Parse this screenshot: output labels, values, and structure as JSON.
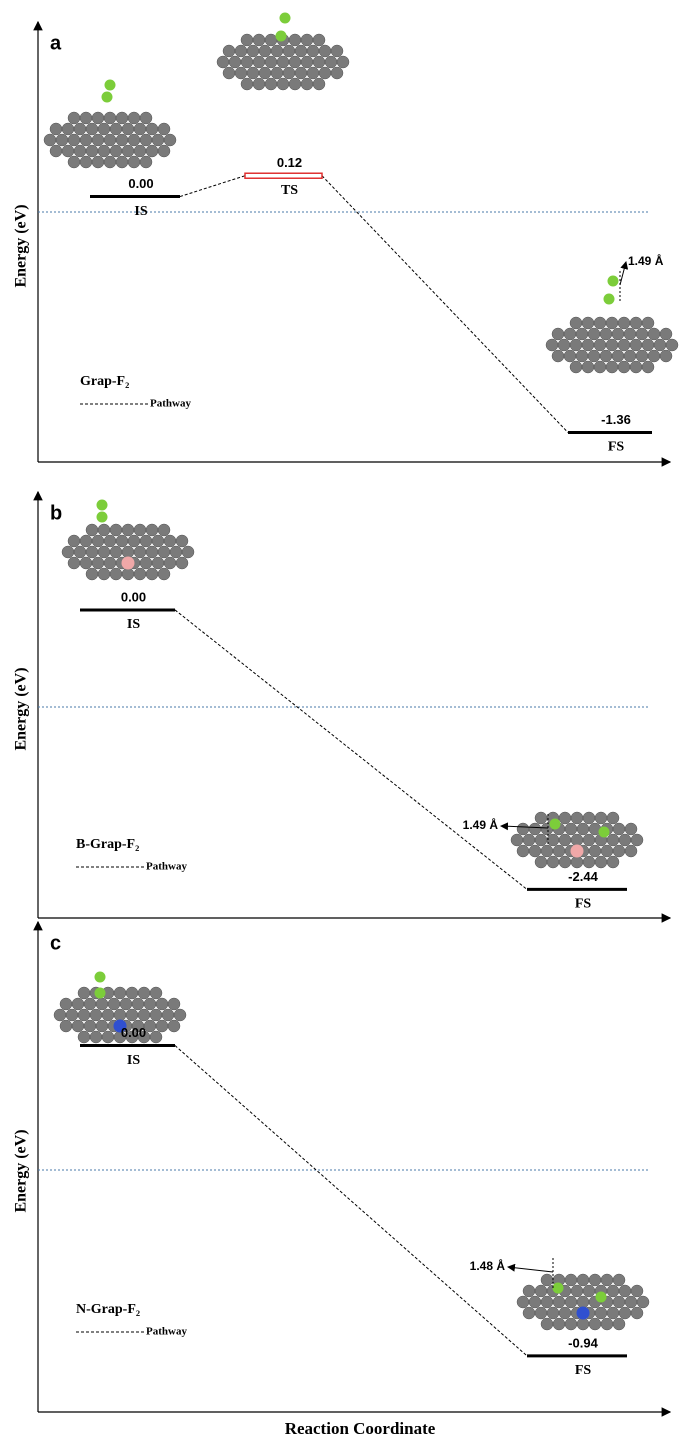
{
  "chart_data": [
    {
      "type": "energy-profile",
      "panel_label": "a",
      "y_label": "Energy (eV)",
      "legend_title": "Grap-F₂",
      "legend_entry": "Pathway",
      "categories": [
        "IS",
        "TS",
        "FS"
      ],
      "values": [
        0.0,
        0.12,
        -1.36
      ],
      "value_labels": [
        "0.00",
        "0.12",
        "-1.36"
      ],
      "colors": [
        "#000000",
        "#e03030",
        "#000000"
      ],
      "ylim": [
        -1.53,
        0.96
      ],
      "annotations": [
        "1.49 Å"
      ]
    },
    {
      "type": "energy-profile",
      "panel_label": "b",
      "y_label": "Energy (eV)",
      "legend_title": "B-Grap-F₂",
      "legend_entry": "Pathway",
      "categories": [
        "IS",
        "FS"
      ],
      "values": [
        0.0,
        -2.44
      ],
      "value_labels": [
        "0.00",
        "-2.44"
      ],
      "colors": [
        "#000000",
        "#000000"
      ],
      "ylim": [
        -2.69,
        0.96
      ],
      "annotations": [
        "1.49 Å"
      ]
    },
    {
      "type": "energy-profile",
      "panel_label": "c",
      "y_label": "Energy (eV)",
      "legend_title": "N-Grap-F₂",
      "legend_entry": "Pathway",
      "categories": [
        "IS",
        "FS"
      ],
      "values": [
        0.0,
        -0.94
      ],
      "value_labels": [
        "0.00",
        "-0.94"
      ],
      "colors": [
        "#000000",
        "#000000"
      ],
      "ylim": [
        -1.11,
        0.35
      ],
      "annotations": [
        "1.48 Å"
      ],
      "x_label": "Reaction Coordinate"
    }
  ]
}
